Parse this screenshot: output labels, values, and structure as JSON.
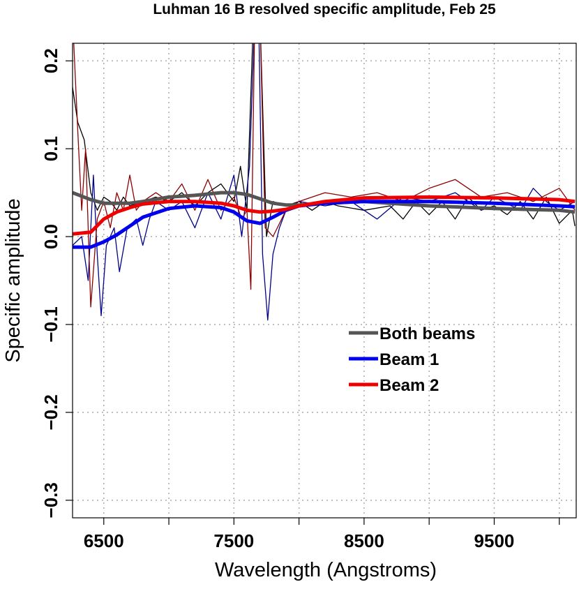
{
  "chart_data": {
    "type": "line",
    "title": "Luhman 16 B resolved specific amplitude, Feb 25",
    "x_label": "Wavelength (Angstroms)",
    "y_label": "Specific amplitude",
    "xlim": [
      6260,
      10130
    ],
    "ylim": [
      -0.32,
      0.22
    ],
    "xticks": [
      6500,
      {
        "value": 7000,
        "label": null
      },
      7500,
      {
        "value": 8000,
        "label": null
      },
      8500,
      {
        "value": 9000,
        "label": null
      },
      9500,
      {
        "value": 10000,
        "label": null
      }
    ],
    "yticks": [
      0.2,
      0.1,
      {
        "value": 0,
        "label": "0.0"
      },
      {
        "value": -0.1,
        "label": "−0.1"
      },
      {
        "value": -0.2,
        "label": "−0.2"
      },
      {
        "value": -0.3,
        "label": "−0.3"
      }
    ],
    "grid": true,
    "legend": "right",
    "x": [
      6260,
      6400,
      6500,
      6600,
      6700,
      6800,
      7000,
      7200,
      7400,
      7500,
      7600,
      7700,
      7800,
      7900,
      8000,
      8200,
      8500,
      9000,
      9500,
      10000,
      10120
    ],
    "series": [
      {
        "name": "Both beams",
        "color": "#555555",
        "linewidth": 5,
        "values": [
          0.05,
          0.042,
          0.038,
          0.038,
          0.038,
          0.04,
          0.045,
          0.047,
          0.05,
          0.05,
          0.048,
          0.043,
          0.038,
          0.036,
          0.036,
          0.038,
          0.04,
          0.035,
          0.032,
          0.03,
          0.028
        ]
      },
      {
        "name": "Beam 1",
        "color": "#0000ee",
        "linewidth": 5,
        "values": [
          -0.012,
          -0.012,
          -0.006,
          0.002,
          0.012,
          0.022,
          0.032,
          0.035,
          0.033,
          0.028,
          0.018,
          0.015,
          0.022,
          0.03,
          0.035,
          0.038,
          0.04,
          0.04,
          0.038,
          0.035,
          0.034
        ]
      },
      {
        "name": "Beam 2",
        "color": "#ee0000",
        "linewidth": 5,
        "values": [
          0.003,
          0.005,
          0.02,
          0.028,
          0.033,
          0.037,
          0.04,
          0.04,
          0.038,
          0.035,
          0.03,
          0.028,
          0.029,
          0.031,
          0.035,
          0.04,
          0.044,
          0.045,
          0.044,
          0.042,
          0.04
        ]
      },
      {
        "color": "#000000",
        "linewidth": 1.3,
        "x": [
          6260,
          6300,
          6350,
          6400,
          6450,
          6500,
          6550,
          6600,
          6650,
          6700,
          6800,
          6900,
          7000,
          7100,
          7200,
          7300,
          7400,
          7500,
          7550,
          7600,
          7650,
          7700,
          7750,
          7800,
          7900,
          8000,
          8100,
          8200,
          8300,
          8500,
          8700,
          8800,
          8900,
          9000,
          9100,
          9200,
          9300,
          9400,
          9500,
          9600,
          9700,
          9800,
          9900,
          10000,
          10100,
          10120
        ],
        "values": [
          0.17,
          0.13,
          0.11,
          0.05,
          0.03,
          0.045,
          0.04,
          0.03,
          0.045,
          0.035,
          0.04,
          0.045,
          0.04,
          0.05,
          0.035,
          0.05,
          0.06,
          0.04,
          0.08,
          0.03,
          0.25,
          0.25,
          0.0,
          0.04,
          0.035,
          0.04,
          0.03,
          0.04,
          0.035,
          0.03,
          0.035,
          0.02,
          0.04,
          0.025,
          0.04,
          0.02,
          0.045,
          0.03,
          0.035,
          0.025,
          0.04,
          0.02,
          0.045,
          0.015,
          0.03,
          0.012
        ]
      },
      {
        "color": "#00008b",
        "linewidth": 1.3,
        "x": [
          6260,
          6330,
          6380,
          6420,
          6450,
          6480,
          6520,
          6580,
          6620,
          6680,
          6750,
          6800,
          6850,
          6900,
          7000,
          7100,
          7200,
          7300,
          7400,
          7500,
          7560,
          7620,
          7660,
          7690,
          7720,
          7760,
          7800,
          7850,
          7900,
          8000,
          8200,
          8400,
          8600,
          8800,
          9000,
          9200,
          9400,
          9500,
          9700,
          9800,
          9900,
          10000,
          10120
        ],
        "values": [
          -0.01,
          0.0,
          -0.05,
          0.07,
          -0.02,
          -0.09,
          -0.01,
          0.01,
          -0.04,
          0.01,
          0.02,
          -0.01,
          0.02,
          0.04,
          0.03,
          0.04,
          0.01,
          0.05,
          0.02,
          0.07,
          0.0,
          0.08,
          0.25,
          0.25,
          -0.02,
          -0.095,
          -0.02,
          0.01,
          0.03,
          0.04,
          0.035,
          0.04,
          0.02,
          0.045,
          0.04,
          0.05,
          0.03,
          0.045,
          0.03,
          0.055,
          0.04,
          0.03,
          0.04
        ]
      },
      {
        "color": "#8b0000",
        "linewidth": 1.3,
        "x": [
          6260,
          6300,
          6330,
          6360,
          6400,
          6450,
          6500,
          6550,
          6600,
          6650,
          6700,
          6750,
          6800,
          6900,
          7000,
          7100,
          7200,
          7300,
          7400,
          7500,
          7560,
          7600,
          7630,
          7660,
          7700,
          7740,
          7800,
          7900,
          8000,
          8100,
          8200,
          8400,
          8600,
          8800,
          9000,
          9200,
          9400,
          9600,
          9800,
          10000,
          10120
        ],
        "values": [
          0.25,
          0.12,
          0.03,
          0.1,
          -0.08,
          0.02,
          0.04,
          0.01,
          0.05,
          0.03,
          0.07,
          0.03,
          0.04,
          0.05,
          0.04,
          0.06,
          0.03,
          0.065,
          0.03,
          0.045,
          0.02,
          0.03,
          -0.06,
          0.25,
          0.25,
          0.01,
          0.0,
          0.03,
          0.04,
          0.045,
          0.05,
          0.045,
          0.05,
          0.04,
          0.055,
          0.065,
          0.045,
          0.05,
          0.04,
          0.055,
          0.03
        ]
      }
    ]
  }
}
